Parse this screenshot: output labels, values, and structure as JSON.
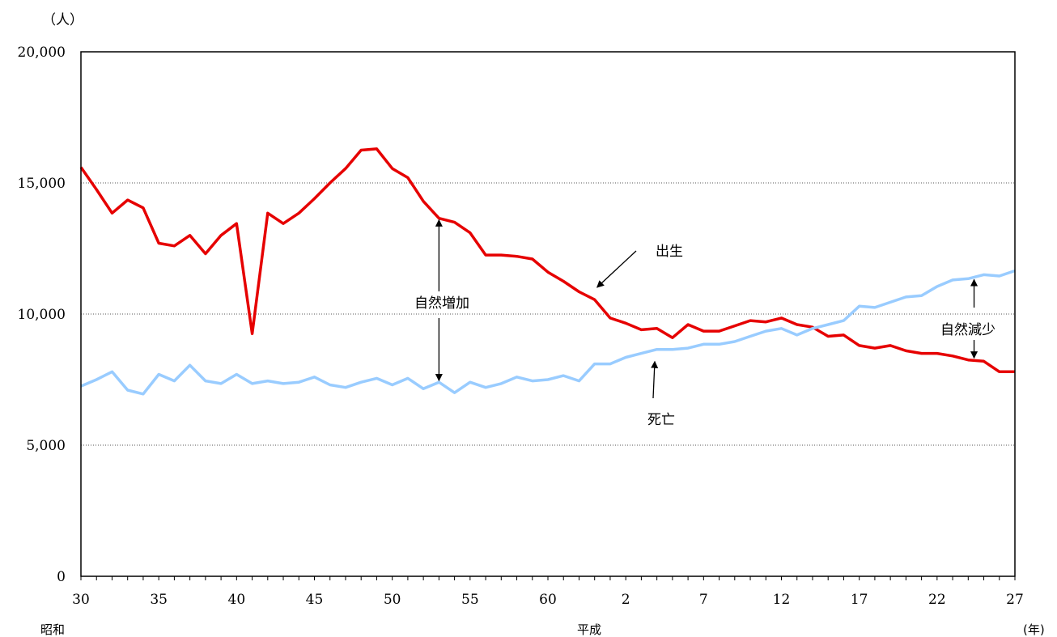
{
  "chart_data": {
    "type": "line",
    "y_unit": "（人）",
    "ylim": [
      0,
      20000
    ],
    "y_ticks": [
      {
        "value": 0,
        "label": "0"
      },
      {
        "value": 5000,
        "label": "5,000"
      },
      {
        "value": 10000,
        "label": "10,000"
      },
      {
        "value": 15000,
        "label": "15,000"
      },
      {
        "value": 20000,
        "label": "20,000"
      }
    ],
    "grid": "horizontal dotted at 5,000 / 10,000 / 15,000",
    "x_ticks": [
      {
        "index": 0,
        "label": "30"
      },
      {
        "index": 5,
        "label": "35"
      },
      {
        "index": 10,
        "label": "40"
      },
      {
        "index": 15,
        "label": "45"
      },
      {
        "index": 20,
        "label": "50"
      },
      {
        "index": 25,
        "label": "55"
      },
      {
        "index": 30,
        "label": "60"
      },
      {
        "index": 35,
        "label": "2"
      },
      {
        "index": 40,
        "label": "7"
      },
      {
        "index": 45,
        "label": "12"
      },
      {
        "index": 50,
        "label": "17"
      },
      {
        "index": 55,
        "label": "22"
      },
      {
        "index": 60,
        "label": "27"
      }
    ],
    "era_labels": [
      {
        "label": "昭和",
        "position": "left"
      },
      {
        "label": "平成",
        "position": "center"
      },
      {
        "label": "(年)",
        "position": "right"
      }
    ],
    "series": [
      {
        "key": "birth",
        "color": "#e60000",
        "values": [
          15600,
          14750,
          13850,
          14350,
          14050,
          12700,
          12600,
          13000,
          12300,
          13000,
          13450,
          9250,
          13850,
          13450,
          13850,
          14400,
          15000,
          15550,
          16250,
          16300,
          15550,
          15200,
          14300,
          13650,
          13500,
          13100,
          12250,
          12250,
          12200,
          12100,
          11600,
          11250,
          10850,
          10550,
          9850,
          9650,
          9400,
          9450,
          9100,
          9600,
          9350,
          9350,
          9550,
          9750,
          9700,
          9850,
          9600,
          9500,
          9150,
          9200,
          8800,
          8700,
          8800,
          8600,
          8500,
          8500,
          8400,
          8250,
          8200,
          7800,
          7800
        ]
      },
      {
        "key": "death",
        "color": "#99ccff",
        "values": [
          7250,
          7500,
          7800,
          7100,
          6950,
          7700,
          7450,
          8050,
          7450,
          7350,
          7700,
          7350,
          7450,
          7350,
          7400,
          7600,
          7300,
          7200,
          7400,
          7550,
          7300,
          7550,
          7150,
          7400,
          7000,
          7400,
          7200,
          7350,
          7600,
          7450,
          7500,
          7650,
          7450,
          8100,
          8100,
          8350,
          8500,
          8650,
          8650,
          8700,
          8850,
          8850,
          8950,
          9150,
          9350,
          9450,
          9200,
          9450,
          9600,
          9750,
          10300,
          10250,
          10450,
          10650,
          10700,
          11050,
          11300,
          11350,
          11500,
          11450,
          11650
        ]
      }
    ],
    "annotations": [
      {
        "key": "birth_label",
        "text": "出生"
      },
      {
        "key": "death_label",
        "text": "死亡"
      },
      {
        "key": "natural_increase",
        "text": "自然増加"
      },
      {
        "key": "natural_decrease",
        "text": "自然減少"
      }
    ]
  }
}
